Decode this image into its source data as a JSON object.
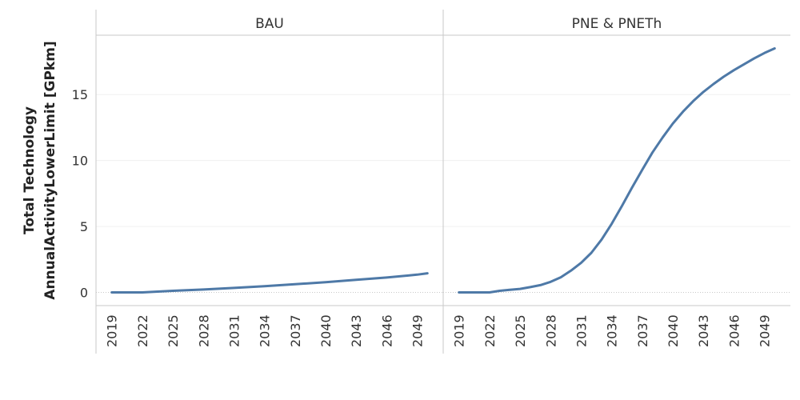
{
  "chart_data": {
    "type": "line",
    "ylabel": [
      "Total Technology",
      "AnnualActivityLowerLimit [GPkm]"
    ],
    "yticks": [
      0,
      5,
      10,
      15
    ],
    "ylim": [
      -1,
      19.5
    ],
    "xlim": [
      2018,
      2051
    ],
    "xticks": [
      "2019",
      "2022",
      "2025",
      "2028",
      "2031",
      "2034",
      "2037",
      "2040",
      "2043",
      "2046",
      "2049"
    ],
    "grid": true,
    "line_color": "#4e79a7",
    "panels": [
      {
        "title": "BAU",
        "x": [
          2019,
          2022,
          2025,
          2028,
          2031,
          2034,
          2037,
          2040,
          2043,
          2046,
          2049,
          2050
        ],
        "y": [
          0,
          0,
          0.12,
          0.22,
          0.34,
          0.47,
          0.62,
          0.78,
          0.95,
          1.13,
          1.35,
          1.45
        ]
      },
      {
        "title": "PNE & PNETh",
        "x": [
          2019,
          2020,
          2021,
          2022,
          2023,
          2024,
          2025,
          2026,
          2027,
          2028,
          2029,
          2030,
          2031,
          2032,
          2033,
          2034,
          2035,
          2036,
          2037,
          2038,
          2039,
          2040,
          2041,
          2042,
          2043,
          2044,
          2045,
          2046,
          2047,
          2048,
          2049,
          2050
        ],
        "y": [
          0,
          0,
          0,
          0,
          0.12,
          0.2,
          0.27,
          0.4,
          0.55,
          0.8,
          1.15,
          1.65,
          2.25,
          3,
          4,
          5.2,
          6.55,
          7.95,
          9.3,
          10.6,
          11.75,
          12.8,
          13.7,
          14.5,
          15.2,
          15.8,
          16.35,
          16.85,
          17.3,
          17.75,
          18.15,
          18.5
        ]
      }
    ]
  }
}
